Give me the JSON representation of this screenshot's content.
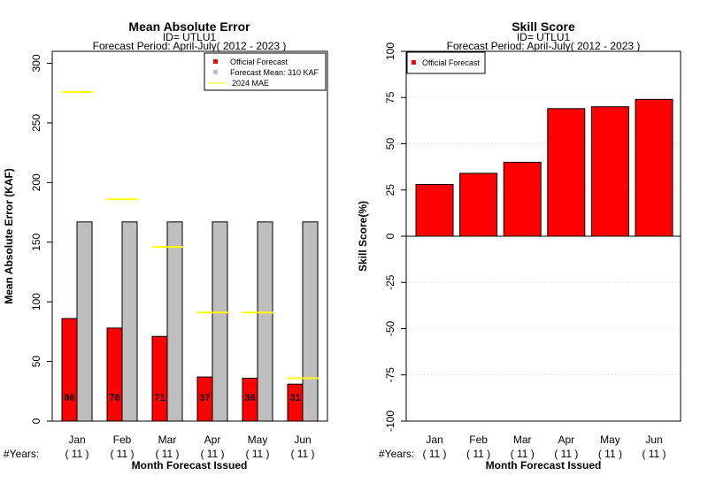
{
  "chart_data": [
    {
      "type": "bar",
      "title": "Mean Absolute Error",
      "subtitle_lines": [
        "ID= UTLU1",
        "Forecast Period: April-July( 2012 - 2023 )"
      ],
      "xlabel": "Month Forecast Issued",
      "ylabel": "Mean Absolute Error (KAF)",
      "ylim": [
        0,
        300
      ],
      "yticks": [
        "0",
        "50",
        "100",
        "150",
        "200",
        "250",
        "300"
      ],
      "categories": [
        "Jan",
        "Feb",
        "Mar",
        "Apr",
        "May",
        "Jun"
      ],
      "years_label": "#Years:",
      "years": [
        "( 11 )",
        "( 11 )",
        "( 11 )",
        "( 11 )",
        "( 11 )",
        "( 11 )"
      ],
      "series": [
        {
          "name": "Official Forecast",
          "color": "#ff0000",
          "values": [
            86,
            78,
            71,
            37,
            36,
            31
          ]
        },
        {
          "name": "Forecast Mean: 310 KAF",
          "color": "#bebebe",
          "values": [
            167,
            167,
            167,
            167,
            167,
            167
          ]
        },
        {
          "name": "2024  MAE",
          "color": "#ffff00",
          "values": [
            276,
            186,
            146,
            91,
            91,
            36
          ]
        }
      ],
      "data_labels": [
        "86",
        "78",
        "71",
        "37",
        "36",
        "31"
      ],
      "legend_position": "top-right",
      "grid": false
    },
    {
      "type": "bar",
      "title": "Skill Score",
      "subtitle_lines": [
        "ID= UTLU1",
        "Forecast Period: April-July( 2012 - 2023 )"
      ],
      "xlabel": "Month Forecast Issued",
      "ylabel": "Skill Score(%)",
      "ylim": [
        -100,
        100
      ],
      "yticks": [
        "-100",
        "-75",
        "-50",
        "-25",
        "0",
        "25",
        "50",
        "75",
        "100"
      ],
      "categories": [
        "Jan",
        "Feb",
        "Mar",
        "Apr",
        "May",
        "Jun"
      ],
      "years_label": "#Years:",
      "years": [
        "( 11 )",
        "( 11 )",
        "( 11 )",
        "( 11 )",
        "( 11 )",
        "( 11 )"
      ],
      "series": [
        {
          "name": "Official Forecast",
          "color": "#ff0000",
          "values": [
            28,
            34,
            40,
            69,
            70,
            74
          ]
        }
      ],
      "legend_position": "top-left",
      "grid": true
    }
  ]
}
